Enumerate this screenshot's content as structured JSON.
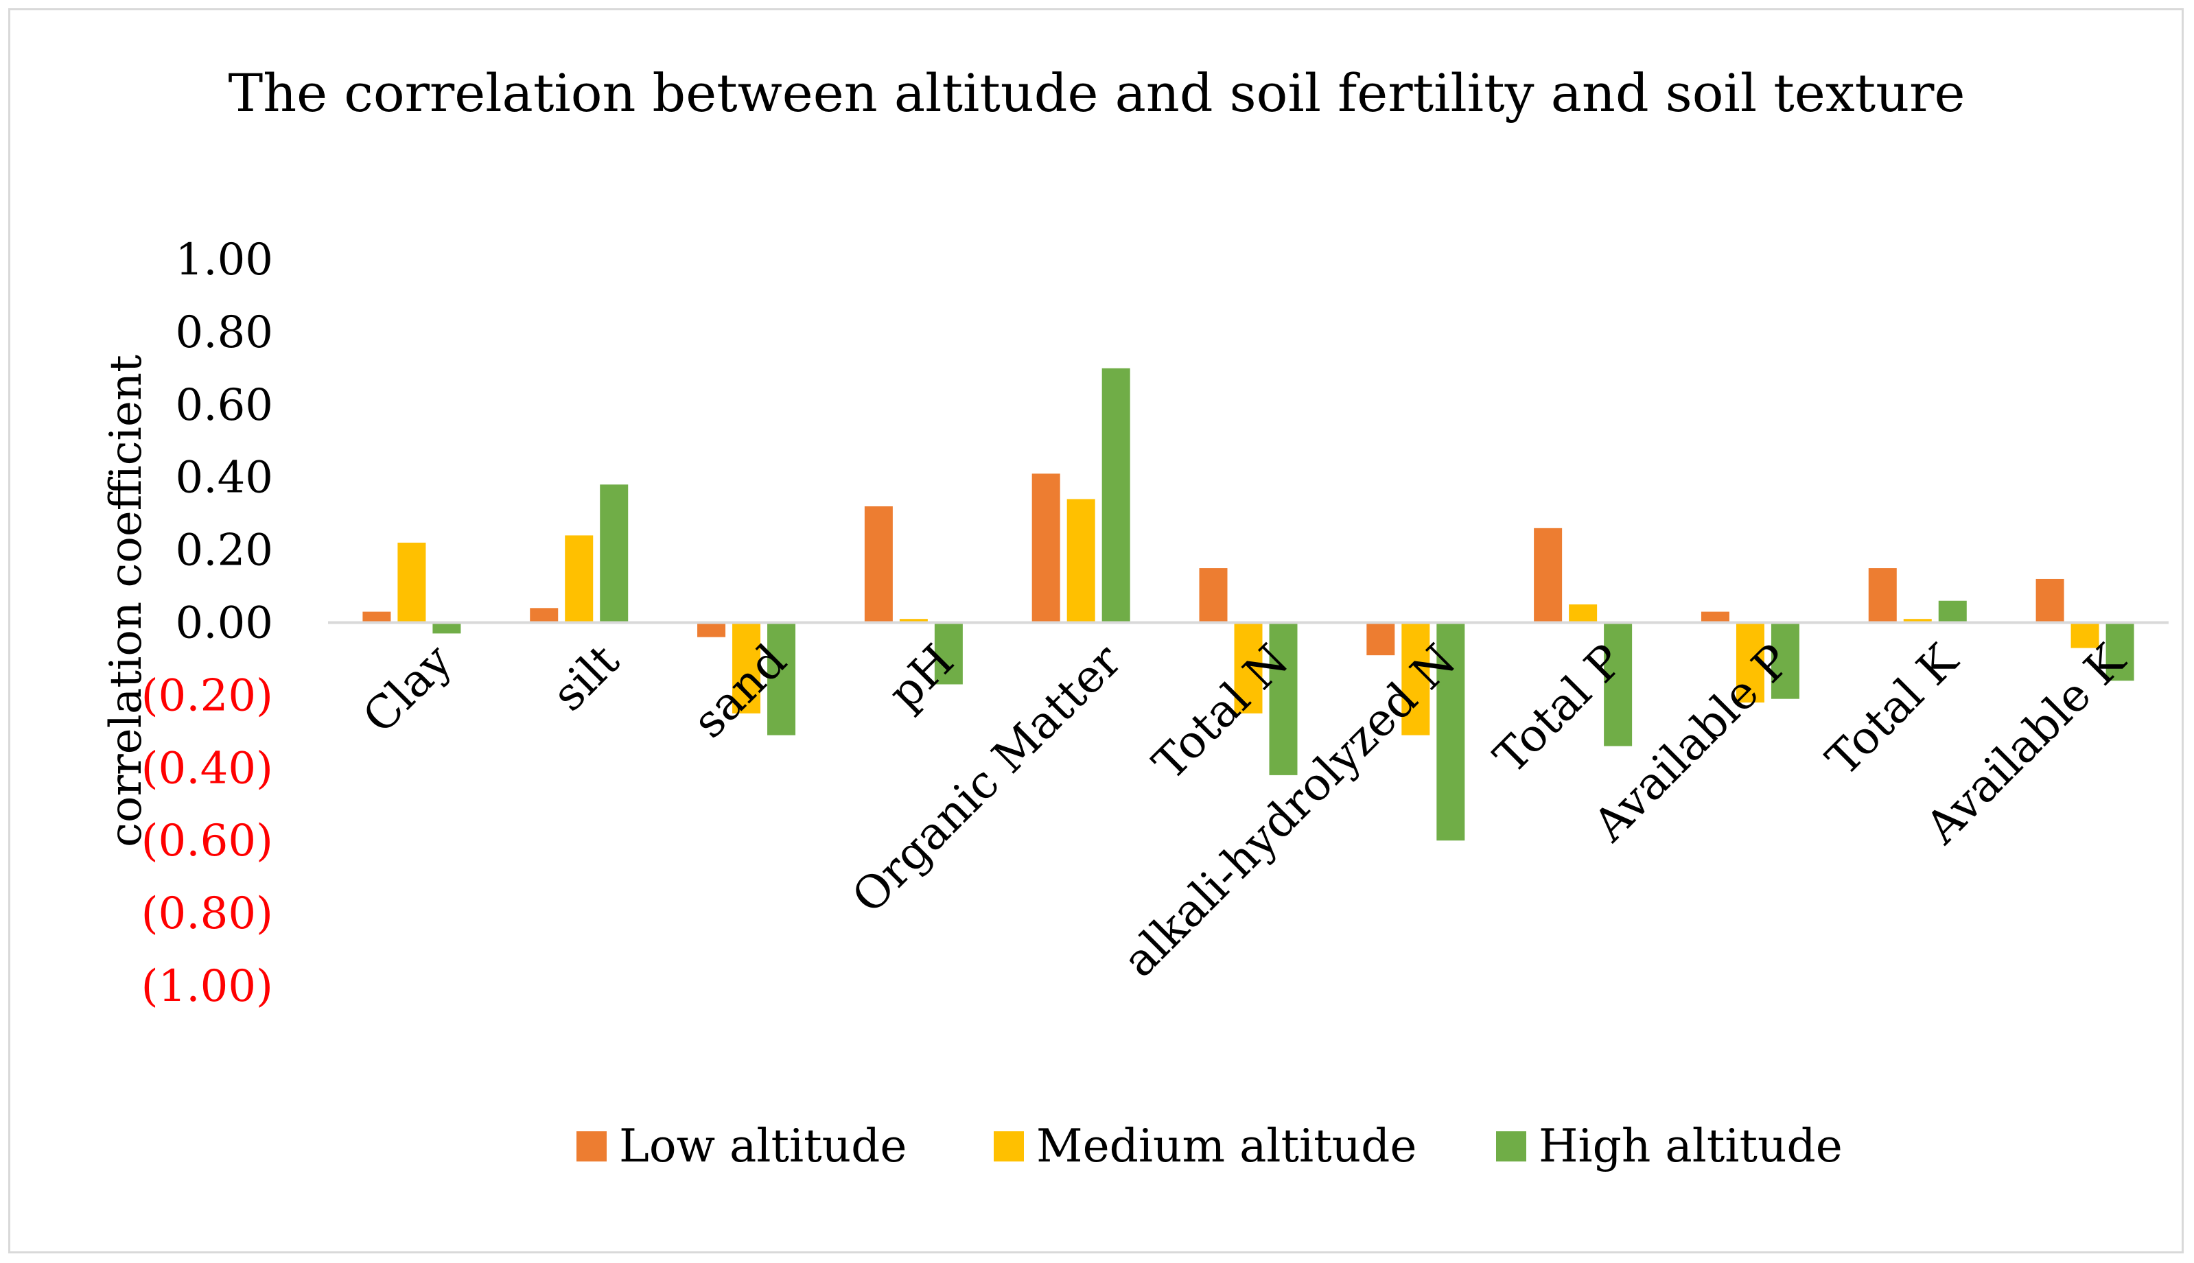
{
  "chart_data": {
    "type": "bar",
    "title": "The correlation between altitude and soil fertility and soil texture",
    "xlabel": "",
    "ylabel": "correlation coefficient",
    "ylim": [
      -1.0,
      1.0
    ],
    "yticks": [
      {
        "value": 1.0,
        "label": "1.00"
      },
      {
        "value": 0.8,
        "label": "0.80"
      },
      {
        "value": 0.6,
        "label": "0.60"
      },
      {
        "value": 0.4,
        "label": "0.40"
      },
      {
        "value": 0.2,
        "label": "0.20"
      },
      {
        "value": 0.0,
        "label": "0.00"
      },
      {
        "value": -0.2,
        "label": "(0.20)"
      },
      {
        "value": -0.4,
        "label": "(0.40)"
      },
      {
        "value": -0.6,
        "label": "(0.60)"
      },
      {
        "value": -0.8,
        "label": "(0.80)"
      },
      {
        "value": -1.0,
        "label": "(1.00)"
      }
    ],
    "grid": false,
    "legend_position": "bottom",
    "categories": [
      "Clay",
      "silt",
      "sand",
      "pH",
      "Organic Matter",
      "Total N",
      "alkali-hydrolyzed N",
      "Total P",
      "Available P",
      "Total K",
      "Available K"
    ],
    "series": [
      {
        "name": "Low altitude",
        "color": "#ED7D31",
        "values": [
          0.03,
          0.04,
          -0.04,
          0.32,
          0.41,
          0.15,
          -0.09,
          0.26,
          0.03,
          0.15,
          0.12
        ]
      },
      {
        "name": "Medium altitude",
        "color": "#FFC000",
        "values": [
          0.22,
          0.24,
          -0.25,
          0.01,
          0.34,
          -0.25,
          -0.31,
          0.05,
          -0.22,
          0.01,
          -0.07
        ]
      },
      {
        "name": "High altitude",
        "color": "#70AD47",
        "values": [
          -0.03,
          0.38,
          -0.31,
          -0.17,
          0.7,
          -0.42,
          -0.6,
          -0.34,
          -0.21,
          0.06,
          -0.16
        ]
      }
    ],
    "positive_tick_color": "#000000",
    "negative_tick_color": "#FF0000",
    "axis_color": "#D9D9D9"
  }
}
